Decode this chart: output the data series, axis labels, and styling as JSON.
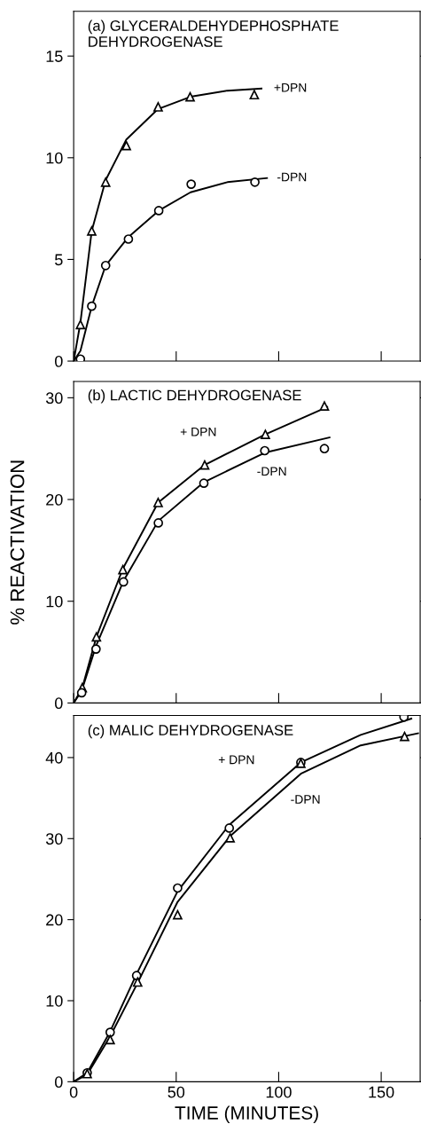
{
  "chart_data": [
    {
      "type": "scatter",
      "title": "(a) GLYCERALDEHYDEPHOSPHATE\nDEHYDROGENASE",
      "xlim": [
        0,
        169
      ],
      "xticks": [
        0,
        50,
        100,
        150
      ],
      "ylim": [
        0,
        17.2
      ],
      "yticks": [
        0,
        5,
        10,
        15
      ],
      "tick_labels": "y",
      "grid": false,
      "legend": false,
      "series": [
        {
          "marker": "triangle",
          "color": "#000000",
          "x": [
            3.3,
            8.8,
            15.6,
            25.7,
            41.2,
            56.8,
            88.1
          ],
          "values": [
            1.8,
            6.4,
            8.8,
            10.6,
            12.5,
            13.0,
            13.1
          ]
        },
        {
          "marker": "circle",
          "color": "#000000",
          "x": [
            3.3,
            8.8,
            15.6,
            26.7,
            41.5,
            57.3,
            88.4
          ],
          "values": [
            0.1,
            2.7,
            4.7,
            6.0,
            7.4,
            8.7,
            8.8
          ]
        },
        {
          "type": "line",
          "name": "+DPN",
          "color": "#000000",
          "x": [
            0,
            3.3,
            8.8,
            15.6,
            25.7,
            41.2,
            57,
            75,
            91.6
          ],
          "values": [
            0,
            1.9,
            6.4,
            8.9,
            10.9,
            12.4,
            13.0,
            13.3,
            13.4
          ]
        },
        {
          "type": "line",
          "name": "-DPN",
          "color": "#000000",
          "x": [
            0,
            3.3,
            8.8,
            15.6,
            26.7,
            41.5,
            57,
            75,
            94.3
          ],
          "values": [
            0,
            0.5,
            2.7,
            4.7,
            6.1,
            7.4,
            8.3,
            8.8,
            9.0
          ]
        }
      ]
    },
    {
      "type": "scatter",
      "title": "(b) LACTIC DEHYDROGENASE",
      "ylabel": "% REACTIVATION",
      "xlim": [
        0,
        169
      ],
      "xticks": [
        0,
        50,
        100,
        150
      ],
      "ylim": [
        0,
        31.6
      ],
      "yticks": [
        0,
        10,
        20,
        30
      ],
      "tick_labels": "y",
      "grid": false,
      "legend": false,
      "series": [
        {
          "marker": "triangle",
          "color": "#000000",
          "x": [
            4.2,
            11.1,
            24.0,
            41.2,
            63.9,
            93.5,
            122.3
          ],
          "values": [
            1.5,
            6.5,
            13.1,
            19.7,
            23.4,
            26.4,
            29.2
          ]
        },
        {
          "marker": "circle",
          "color": "#000000",
          "x": [
            3.9,
            10.9,
            24.3,
            41.3,
            63.5,
            93.2,
            122.3
          ],
          "values": [
            1.0,
            5.3,
            11.9,
            17.7,
            21.6,
            24.8,
            25.0
          ]
        },
        {
          "type": "line",
          "name": "+ DPN",
          "color": "#000000",
          "x": [
            0,
            4.2,
            11.1,
            24.0,
            41.2,
            63.9,
            93.5,
            123.7
          ],
          "values": [
            0,
            1.5,
            6.5,
            13.2,
            19.7,
            23.4,
            26.4,
            29.1
          ]
        },
        {
          "type": "line",
          "name": "-DPN",
          "color": "#000000",
          "x": [
            0,
            3.9,
            10.9,
            24.3,
            41.3,
            63.5,
            93.2,
            124.8
          ],
          "values": [
            0,
            1.2,
            5.6,
            12.0,
            17.9,
            21.7,
            24.6,
            26.1
          ]
        }
      ]
    },
    {
      "type": "scatter",
      "title": "(c) MALIC DEHYDROGENASE",
      "xlabel": "TIME (MINUTES)",
      "xlim": [
        0,
        169
      ],
      "xticks": [
        0,
        50,
        100,
        150
      ],
      "ylim": [
        0,
        45.2
      ],
      "yticks": [
        0,
        10,
        20,
        30,
        40
      ],
      "grid": false,
      "legend": false,
      "series": [
        {
          "marker": "circle",
          "color": "#000000",
          "x": [
            6.6,
            17.8,
            30.7,
            50.7,
            75.9,
            110.8,
            161.1
          ],
          "values": [
            1.1,
            6.1,
            13.1,
            23.9,
            31.3,
            39.4,
            45.0
          ]
        },
        {
          "marker": "triangle",
          "color": "#000000",
          "x": [
            6.6,
            17.8,
            31.2,
            50.7,
            76.3,
            110.8,
            161.4
          ],
          "values": [
            1.0,
            5.2,
            12.3,
            20.6,
            30.1,
            39.3,
            42.6
          ]
        },
        {
          "type": "line",
          "name": "+ DPN",
          "color": "#000000",
          "x": [
            0,
            6.6,
            17.8,
            30.7,
            50.7,
            75.9,
            110.8,
            140,
            164.7
          ],
          "values": [
            0,
            1.1,
            6.2,
            13.3,
            23.5,
            31.7,
            39.4,
            42.8,
            44.8
          ]
        },
        {
          "type": "line",
          "name": "-DPN",
          "color": "#000000",
          "x": [
            0,
            6.6,
            17.8,
            31.2,
            50.7,
            76.3,
            110.8,
            140,
            168
          ],
          "values": [
            0,
            0.9,
            5.6,
            12.2,
            22.2,
            30.3,
            38.0,
            41.5,
            43.0
          ]
        }
      ]
    }
  ]
}
